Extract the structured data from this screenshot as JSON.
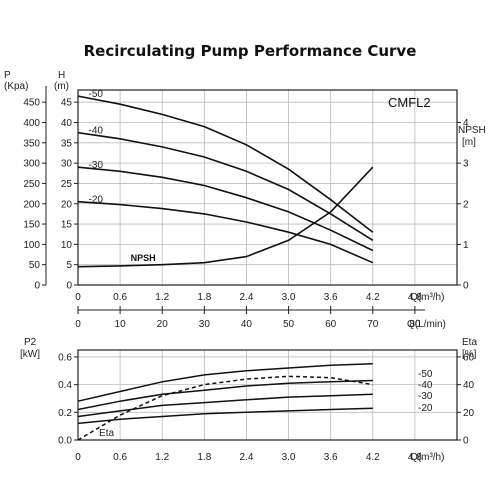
{
  "chart_data": [
    {
      "type": "line",
      "title": "Recirculating Pump Performance Curve",
      "model": "CMFL2",
      "left_axis_p": {
        "label": "P",
        "unit": "(Kpa)",
        "ticks": [
          0,
          50,
          100,
          150,
          200,
          250,
          300,
          350,
          400,
          450
        ]
      },
      "left_axis_h": {
        "label": "H",
        "unit": "(m)",
        "ticks": [
          0,
          5,
          10,
          15,
          20,
          25,
          30,
          35,
          40,
          45
        ],
        "range": [
          0,
          48
        ]
      },
      "right_axis": {
        "label": "NPSH",
        "unit": "[m]",
        "ticks": [
          0,
          1,
          2,
          3,
          4
        ],
        "range": [
          0,
          4.8
        ]
      },
      "x_axis": {
        "label": "Q(m³/h)",
        "ticks": [
          "0",
          "0.6",
          "1.2",
          "1.8",
          "2.4",
          "3.0",
          "3.6",
          "4.2",
          "4.8"
        ],
        "range": [
          0,
          5.4
        ]
      },
      "x_axis_secondary": {
        "label": "Q(L/min)",
        "ticks": [
          "0",
          "10",
          "20",
          "30",
          "40",
          "50",
          "60",
          "70",
          "80"
        ]
      },
      "grid": true,
      "series": [
        {
          "name": "-50",
          "x": [
            0,
            0.6,
            1.2,
            1.8,
            2.4,
            3.0,
            3.6,
            4.2
          ],
          "y": [
            46.5,
            44.5,
            42,
            39,
            34.5,
            28.5,
            21,
            13
          ]
        },
        {
          "name": "-40",
          "x": [
            0,
            0.6,
            1.2,
            1.8,
            2.4,
            3.0,
            3.6,
            4.2
          ],
          "y": [
            37.5,
            36,
            34,
            31.5,
            28,
            23.5,
            17.5,
            11
          ]
        },
        {
          "name": "-30",
          "x": [
            0,
            0.6,
            1.2,
            1.8,
            2.4,
            3.0,
            3.6,
            4.2
          ],
          "y": [
            29,
            28,
            26.5,
            24.5,
            21.5,
            18,
            13.5,
            8.5
          ]
        },
        {
          "name": "-20",
          "x": [
            0,
            0.6,
            1.2,
            1.8,
            2.4,
            3.0,
            3.6,
            4.2
          ],
          "y": [
            20.5,
            19.8,
            18.8,
            17.5,
            15.5,
            13,
            10,
            5.5
          ]
        },
        {
          "name": "NPSH",
          "axis": "right",
          "x": [
            0,
            0.6,
            1.2,
            1.8,
            2.4,
            3.0,
            3.6,
            4.2
          ],
          "y": [
            0.45,
            0.47,
            0.5,
            0.55,
            0.7,
            1.1,
            1.8,
            2.9
          ]
        }
      ]
    },
    {
      "type": "line",
      "left_axis": {
        "label": "P2",
        "unit": "[kW]",
        "ticks": [
          "0.0",
          "0.2",
          "0.4",
          "0.6"
        ],
        "range": [
          0,
          0.65
        ]
      },
      "right_axis": {
        "label": "Eta",
        "unit": "[%]",
        "ticks": [
          "0",
          "20",
          "40",
          "60"
        ],
        "range": [
          0,
          65
        ]
      },
      "x_axis": {
        "label": "Q(m³/h)",
        "ticks": [
          "0",
          "0.6",
          "1.2",
          "1.8",
          "2.4",
          "3.0",
          "3.6",
          "4.2",
          "4.8"
        ],
        "range": [
          0,
          5.4
        ]
      },
      "grid": true,
      "series": [
        {
          "name": "-50",
          "x": [
            0,
            0.6,
            1.2,
            1.8,
            2.4,
            3.0,
            3.6,
            4.2
          ],
          "y": [
            0.28,
            0.35,
            0.42,
            0.47,
            0.5,
            0.52,
            0.54,
            0.55
          ]
        },
        {
          "name": "-40",
          "x": [
            0,
            0.6,
            1.2,
            1.8,
            2.4,
            3.0,
            3.6,
            4.2
          ],
          "y": [
            0.22,
            0.28,
            0.33,
            0.36,
            0.39,
            0.41,
            0.42,
            0.43
          ]
        },
        {
          "name": "-30",
          "x": [
            0,
            0.6,
            1.2,
            1.8,
            2.4,
            3.0,
            3.6,
            4.2
          ],
          "y": [
            0.17,
            0.21,
            0.25,
            0.27,
            0.29,
            0.31,
            0.32,
            0.33
          ]
        },
        {
          "name": "-20",
          "x": [
            0,
            0.6,
            1.2,
            1.8,
            2.4,
            3.0,
            3.6,
            4.2
          ],
          "y": [
            0.12,
            0.15,
            0.17,
            0.19,
            0.2,
            0.21,
            0.22,
            0.23
          ]
        },
        {
          "name": "Eta",
          "axis": "right",
          "dashed": true,
          "x": [
            0,
            0.6,
            1.2,
            1.8,
            2.4,
            3.0,
            3.6,
            4.2
          ],
          "y": [
            0,
            18,
            32,
            40,
            44,
            46,
            45,
            40
          ]
        }
      ]
    }
  ]
}
